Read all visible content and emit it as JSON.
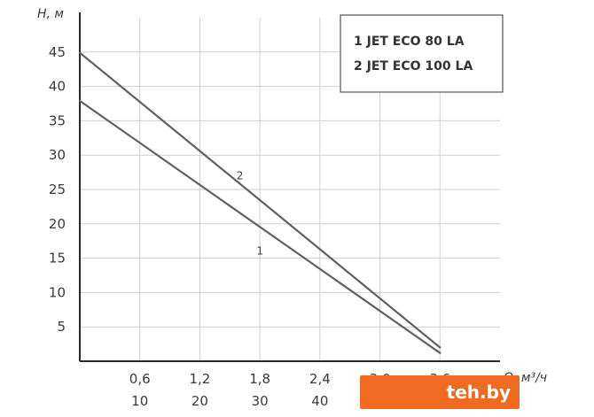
{
  "chart_data": {
    "type": "line",
    "title": "",
    "ylabel": "H, м",
    "xlabel": "Q, м³/ч",
    "x_ticks_primary": [
      "0,6",
      "1,2",
      "1,8",
      "2,4",
      "3,0",
      "3,6"
    ],
    "x_ticks_secondary": [
      "10",
      "20",
      "30",
      "40"
    ],
    "y_ticks": [
      "5",
      "10",
      "15",
      "20",
      "25",
      "30",
      "35",
      "40",
      "45"
    ],
    "xlim": [
      0,
      4.2
    ],
    "ylim": [
      0,
      50
    ],
    "grid": true,
    "legend_position": "top-right",
    "legend": [
      "1 JET ECO 80 LA",
      "2 JET ECO 100 LA"
    ],
    "series": [
      {
        "name": "1",
        "x": [
          0,
          3.6
        ],
        "y": [
          37.9,
          1.2
        ],
        "label_at": [
          1.8,
          15.5
        ]
      },
      {
        "name": "2",
        "x": [
          0,
          3.6
        ],
        "y": [
          44.9,
          2.0
        ],
        "label_at": [
          1.6,
          26.5
        ]
      }
    ],
    "colors": {
      "line": "#606060",
      "grid": "#cfcfcf",
      "axis": "#2a2a2a"
    }
  },
  "watermark": {
    "text": "teh.by"
  }
}
